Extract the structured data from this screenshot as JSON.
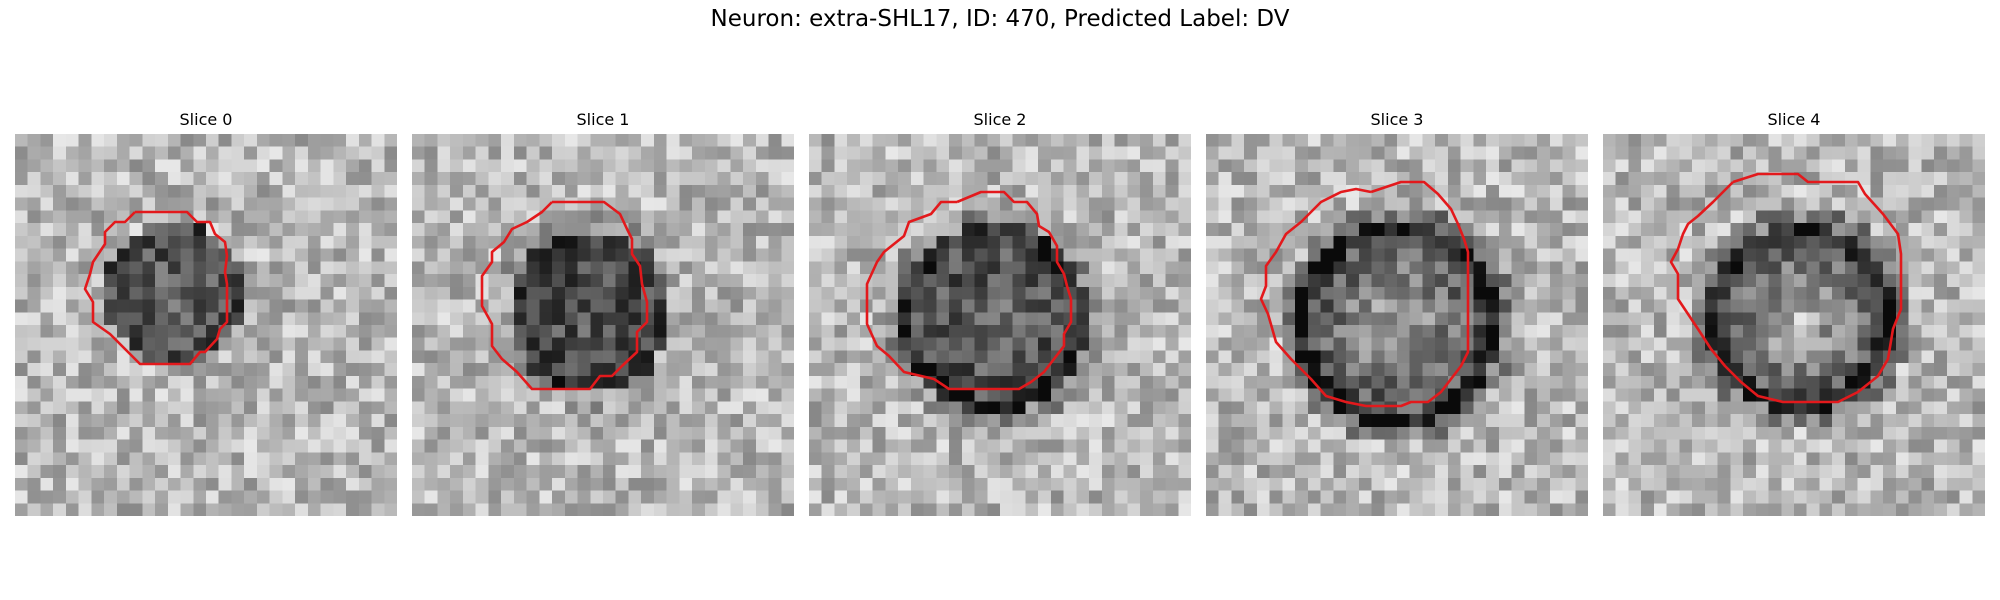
{
  "figure": {
    "title": "Neuron: extra-SHL17, ID: 470, Predicted Label: DV"
  },
  "contour_color": "#e3191c",
  "panels": [
    {
      "title": "Slice 0",
      "icon": "grayscale-slice-image"
    },
    {
      "title": "Slice 1",
      "icon": "grayscale-slice-image"
    },
    {
      "title": "Slice 2",
      "icon": "grayscale-slice-image"
    },
    {
      "title": "Slice 3",
      "icon": "grayscale-slice-image"
    },
    {
      "title": "Slice 4",
      "icon": "grayscale-slice-image"
    }
  ]
}
